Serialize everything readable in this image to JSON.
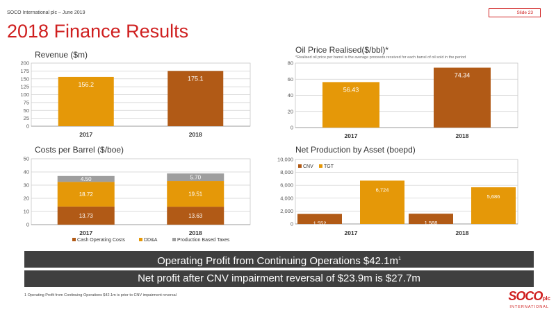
{
  "header": {
    "subtitle": "SOCO International plc – June 2019",
    "slide_number": "Slide 23",
    "title": "2018 Finance Results"
  },
  "colors": {
    "brand_red": "#cf1f1f",
    "orange": "#e59808",
    "brown": "#b15a16",
    "gray": "#9e9e9e",
    "banner_bg": "#3f3f3f"
  },
  "charts": {
    "revenue": {
      "title": "Revenue ($m)"
    },
    "oil": {
      "title": "Oil Price Realised($/bbl)*",
      "note": "*Realised oil price per barrel is the average proceeds received for each barrel of oil sold in the period"
    },
    "costs": {
      "title": "Costs per Barrel ($/boe)"
    },
    "production": {
      "title": "Net Production by Asset (boepd)"
    }
  },
  "chart_data": [
    {
      "id": "revenue",
      "type": "bar",
      "title": "Revenue ($m)",
      "categories": [
        "2017",
        "2018"
      ],
      "values": [
        156.2,
        175.1
      ],
      "value_labels": [
        "156.2",
        "175.1"
      ],
      "colors": [
        "#e59808",
        "#b15a16"
      ],
      "ylim": [
        0,
        200
      ],
      "yticks": [
        0,
        25,
        50,
        75,
        100,
        125,
        150,
        175,
        200
      ],
      "ytick_labels": [
        "0",
        "25",
        "50",
        "75",
        "100",
        "125",
        "150",
        "175",
        "200"
      ],
      "grid": true
    },
    {
      "id": "oil",
      "type": "bar",
      "title": "Oil Price Realised($/bbl)*",
      "categories": [
        "2017",
        "2018"
      ],
      "values": [
        56.43,
        74.34
      ],
      "value_labels": [
        "56.43",
        "74.34"
      ],
      "colors": [
        "#e59808",
        "#b15a16"
      ],
      "ylim": [
        0,
        80
      ],
      "yticks": [
        0,
        20,
        40,
        60,
        80
      ],
      "ytick_labels": [
        "0",
        "20",
        "40",
        "60",
        "80"
      ],
      "grid": true
    },
    {
      "id": "costs",
      "type": "bar",
      "stacked": true,
      "title": "Costs per Barrel ($/boe)",
      "categories": [
        "2017",
        "2018"
      ],
      "series": [
        {
          "name": "Cash Operating Costs",
          "values": [
            13.73,
            13.63
          ],
          "labels": [
            "13.73",
            "13.63"
          ],
          "color": "#b15a16"
        },
        {
          "name": "DD&A",
          "values": [
            18.72,
            19.51
          ],
          "labels": [
            "18.72",
            "19.51"
          ],
          "color": "#e59808"
        },
        {
          "name": "Production Based Taxes",
          "values": [
            4.5,
            5.7
          ],
          "labels": [
            "4.50",
            "5.70"
          ],
          "color": "#9e9e9e"
        }
      ],
      "ylim": [
        0,
        50
      ],
      "yticks": [
        0,
        10,
        20,
        30,
        40,
        50
      ],
      "ytick_labels": [
        "0",
        "10",
        "20",
        "30",
        "40",
        "50"
      ],
      "grid": true,
      "legend": "bottom"
    },
    {
      "id": "production",
      "type": "bar",
      "title": "Net Production by Asset (boepd)",
      "categories": [
        "2017",
        "2018"
      ],
      "series": [
        {
          "name": "CNV",
          "values": [
            1552,
            1588
          ],
          "labels": [
            "1,552",
            "1,588"
          ],
          "color": "#b15a16"
        },
        {
          "name": "TGT",
          "values": [
            6724,
            5686
          ],
          "labels": [
            "6,724",
            "5,686"
          ],
          "color": "#e59808"
        }
      ],
      "ylim": [
        0,
        10000
      ],
      "yticks": [
        0,
        2000,
        4000,
        6000,
        8000,
        10000
      ],
      "ytick_labels": [
        "0",
        "2,000",
        "4,000",
        "6,000",
        "8,000",
        "10,000"
      ],
      "grid": true,
      "legend": "top-left"
    }
  ],
  "banners": {
    "operating_profit": "Operating Profit from Continuing Operations $42.1m",
    "operating_profit_sup": "1",
    "net_profit": "Net profit after CNV impairment reversal of $23.9m is $27.7m"
  },
  "footnote": "1 Operating Profit from Continuing Operations $42.1m is prior to CNV impairment reversal",
  "logo": {
    "main": "SOCO",
    "suffix": "plc",
    "sub": "INTERNATIONAL"
  }
}
